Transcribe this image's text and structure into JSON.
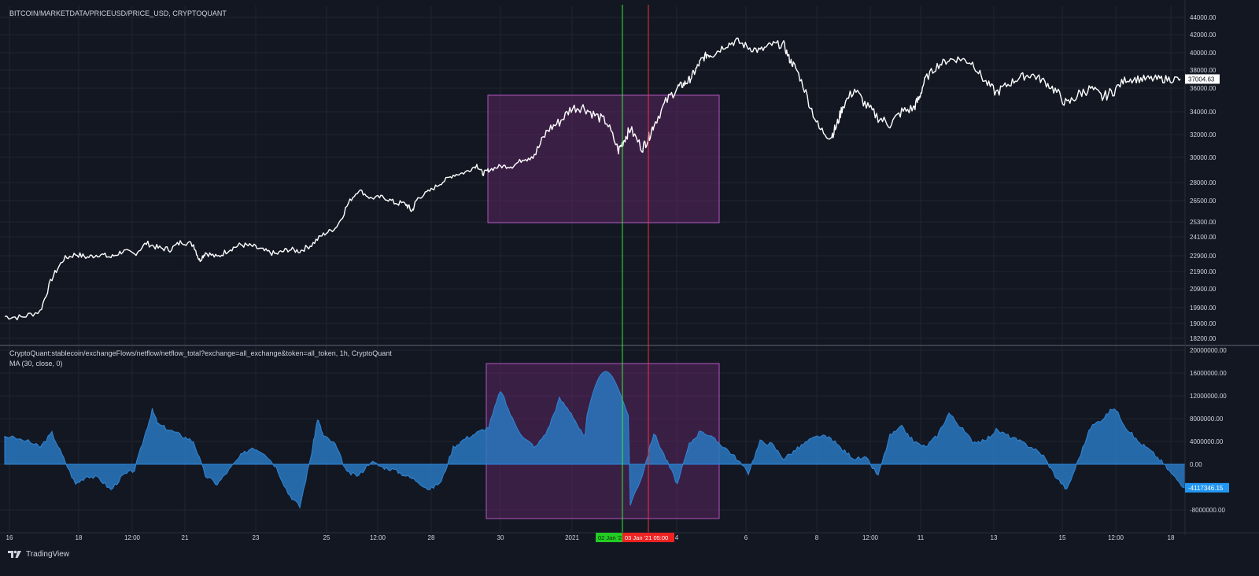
{
  "colors": {
    "background": "#131722",
    "grid": "#1f2430",
    "price_line": "#ffffff",
    "area_fill": "#2a78c0",
    "area_line": "#2f86d6",
    "zone_fill": "#6a2a72",
    "zone_stroke": "#b055c0",
    "vline_green": "#33ee33",
    "vline_red": "#ee3333",
    "axis_text": "#d1d4dc",
    "label_green_bg": "#22cc22",
    "label_red_bg": "#ee2222",
    "last_price_bg": "#ffffff",
    "last_flow_bg": "#2196f3"
  },
  "top_legend": "BITCOIN/MARKETDATA/PRICEUSD/PRICE_USD, CRYPTOQUANT",
  "bottom_legend_1": "CryptoQuant:stablecoin/exchangeFlows/netflow/netflow_total?exchange=all_exchange&token=all_token, 1h, CryptoQuant",
  "bottom_legend_2": "MA (30, close, 0)",
  "brand_name": "TradingView",
  "brand_icon": "tradingview-logo-icon",
  "time_labels": [
    "16",
    "18",
    "12:00",
    "21",
    "23",
    "25",
    "12:00",
    "28",
    "30",
    "2021",
    "4",
    "6",
    "8",
    "12:00",
    "11",
    "13",
    "15",
    "12:00",
    "18"
  ],
  "highlight_labels": {
    "green": "02 Jan '2",
    "red": "03 Jan '21   05:00"
  },
  "chart_data": [
    {
      "type": "line",
      "title": "BITCOIN/MARKETDATA/PRICEUSD/PRICE_USD, CRYPTOQUANT",
      "series": [
        {
          "x": [
            0,
            0.014,
            0.03,
            0.04,
            0.05,
            0.06,
            0.07,
            0.08,
            0.09,
            0.1,
            0.11,
            0.12,
            0.13,
            0.14,
            0.15,
            0.16,
            0.165,
            0.17,
            0.18,
            0.19,
            0.2,
            0.21,
            0.22,
            0.23,
            0.24,
            0.25,
            0.26,
            0.27,
            0.28,
            0.29,
            0.3,
            0.31,
            0.32,
            0.33,
            0.34,
            0.345,
            0.35,
            0.36,
            0.37,
            0.38,
            0.39,
            0.4,
            0.405,
            0.41,
            0.42,
            0.43,
            0.44,
            0.45,
            0.46,
            0.47,
            0.48,
            0.49,
            0.5,
            0.51,
            0.52,
            0.525,
            0.53,
            0.54,
            0.545,
            0.55,
            0.56,
            0.57,
            0.575,
            0.58,
            0.585,
            0.59,
            0.595,
            0.6,
            0.61,
            0.62,
            0.63,
            0.64,
            0.65,
            0.66,
            0.665,
            0.67,
            0.68,
            0.69,
            0.7,
            0.705,
            0.71,
            0.72,
            0.73,
            0.74,
            0.75,
            0.76,
            0.77,
            0.775,
            0.78,
            0.79,
            0.8,
            0.81,
            0.82,
            0.83,
            0.84,
            0.85,
            0.86,
            0.87,
            0.88,
            0.89,
            0.9,
            0.91,
            0.92,
            0.93,
            0.94,
            0.95,
            0.96,
            0.97,
            0.98,
            0.99,
            1.0
          ],
          "values": [
            19400,
            19350,
            19700,
            21500,
            22700,
            23000,
            22800,
            23000,
            22800,
            23200,
            23000,
            23700,
            23400,
            23300,
            23800,
            23600,
            22600,
            23100,
            22800,
            23300,
            23600,
            23500,
            23200,
            23000,
            23300,
            23200,
            23600,
            24300,
            24800,
            26200,
            27400,
            26700,
            26800,
            26400,
            26300,
            25900,
            26700,
            27300,
            28000,
            28600,
            28800,
            29400,
            28700,
            29000,
            29300,
            29300,
            29900,
            30400,
            32400,
            33100,
            34300,
            34400,
            33700,
            33100,
            30600,
            31600,
            32500,
            30800,
            31600,
            32900,
            34800,
            36100,
            36400,
            36900,
            37900,
            39100,
            39800,
            39800,
            40800,
            41300,
            40600,
            40200,
            40900,
            40900,
            39200,
            38300,
            35200,
            32500,
            31800,
            32800,
            34500,
            35900,
            34500,
            33500,
            32900,
            34000,
            34300,
            35200,
            37000,
            38500,
            39200,
            39300,
            38800,
            36800,
            35600,
            36400,
            37200,
            37500,
            36800,
            35800,
            34600,
            35500,
            36000,
            35200,
            35800,
            37004.63,
            37004.63,
            37004.63,
            37004.63,
            37004.63,
            37004.63
          ]
        }
      ],
      "y_ticks": [
        "44000.00",
        "42000.00",
        "40000.00",
        "38000.00",
        "36000.00",
        "34000.00",
        "32000.00",
        "30000.00",
        "28000.00",
        "26500.00",
        "25300.00",
        "24100.00",
        "22900.00",
        "21900.00",
        "20900.00",
        "19900.00",
        "19000.00",
        "18200.00"
      ],
      "last_value": "37004.63"
    },
    {
      "type": "area",
      "title": "CryptoQuant:stablecoin/exchangeFlows/netflow/netflow_total?exchange=all_exchange&token=all_token, 1h, CryptoQuant",
      "series": [
        {
          "name": "MA (30, close, 0)",
          "x": [
            0,
            0.02,
            0.03,
            0.04,
            0.05,
            0.06,
            0.07,
            0.08,
            0.09,
            0.1,
            0.11,
            0.12,
            0.125,
            0.13,
            0.14,
            0.15,
            0.16,
            0.17,
            0.18,
            0.19,
            0.2,
            0.21,
            0.22,
            0.23,
            0.24,
            0.25,
            0.26,
            0.265,
            0.27,
            0.28,
            0.29,
            0.3,
            0.31,
            0.32,
            0.33,
            0.34,
            0.35,
            0.36,
            0.37,
            0.38,
            0.39,
            0.4,
            0.41,
            0.42,
            0.43,
            0.44,
            0.45,
            0.46,
            0.47,
            0.48,
            0.49,
            0.5,
            0.51,
            0.52,
            0.53,
            0.54,
            0.55,
            0.56,
            0.57,
            0.58,
            0.59,
            0.6,
            0.61,
            0.62,
            0.63,
            0.64,
            0.65,
            0.66,
            0.67,
            0.68,
            0.69,
            0.7,
            0.71,
            0.72,
            0.73,
            0.74,
            0.75,
            0.76,
            0.77,
            0.78,
            0.79,
            0.8,
            0.81,
            0.82,
            0.83,
            0.84,
            0.85,
            0.86,
            0.87,
            0.88,
            0.89,
            0.9,
            0.91,
            0.92,
            0.93,
            0.94,
            0.95,
            0.96,
            0.97,
            0.98,
            0.99,
            1.0
          ],
          "values": [
            5000000,
            4000000,
            3000000,
            5500000,
            1000000,
            -3500000,
            -2000000,
            -2500000,
            -4500000,
            -2000000,
            -1000000,
            6000000,
            9500000,
            7000000,
            6000000,
            5000000,
            4000000,
            -2000000,
            -3500000,
            -1000000,
            1500000,
            3000000,
            2000000,
            -500000,
            -5000000,
            -7500000,
            2000000,
            8000000,
            5000000,
            3500000,
            -1500000,
            -2000000,
            500000,
            -500000,
            -1000000,
            -2000000,
            -3000000,
            -4500000,
            -3000000,
            3000000,
            4500000,
            5500000,
            6500000,
            13000000,
            8000000,
            4500000,
            3000000,
            6000000,
            11500000,
            9000000,
            5000000,
            4000000,
            2000000,
            -5000000,
            -7000000,
            -2000000,
            5500000,
            1000000,
            -3500000,
            3500000,
            6000000,
            4500000,
            3000000,
            1000000,
            -1500000,
            4000000,
            3500000,
            1000000,
            2500000,
            4000000,
            5000000,
            4500000,
            2500000,
            1000000,
            1000000,
            -2000000,
            5000000,
            6500000,
            4000000,
            3000000,
            5000000,
            9000000,
            6500000,
            4000000,
            4000000,
            6000000,
            5000000,
            4000000,
            3000000,
            1500000,
            -2000000,
            -4500000,
            1000000,
            6500000,
            8000000,
            10000000,
            6500000,
            4000000,
            2500000,
            500000,
            -2000000,
            -4117346.15
          ],
          "highlight_peak": 18200000
        }
      ],
      "y_ticks": [
        "20000000.00",
        "16000000.00",
        "12000000.00",
        "8000000.00",
        "4000000.00",
        "0.00",
        "-8000000.00"
      ],
      "last_value": "-4117346.15"
    }
  ]
}
